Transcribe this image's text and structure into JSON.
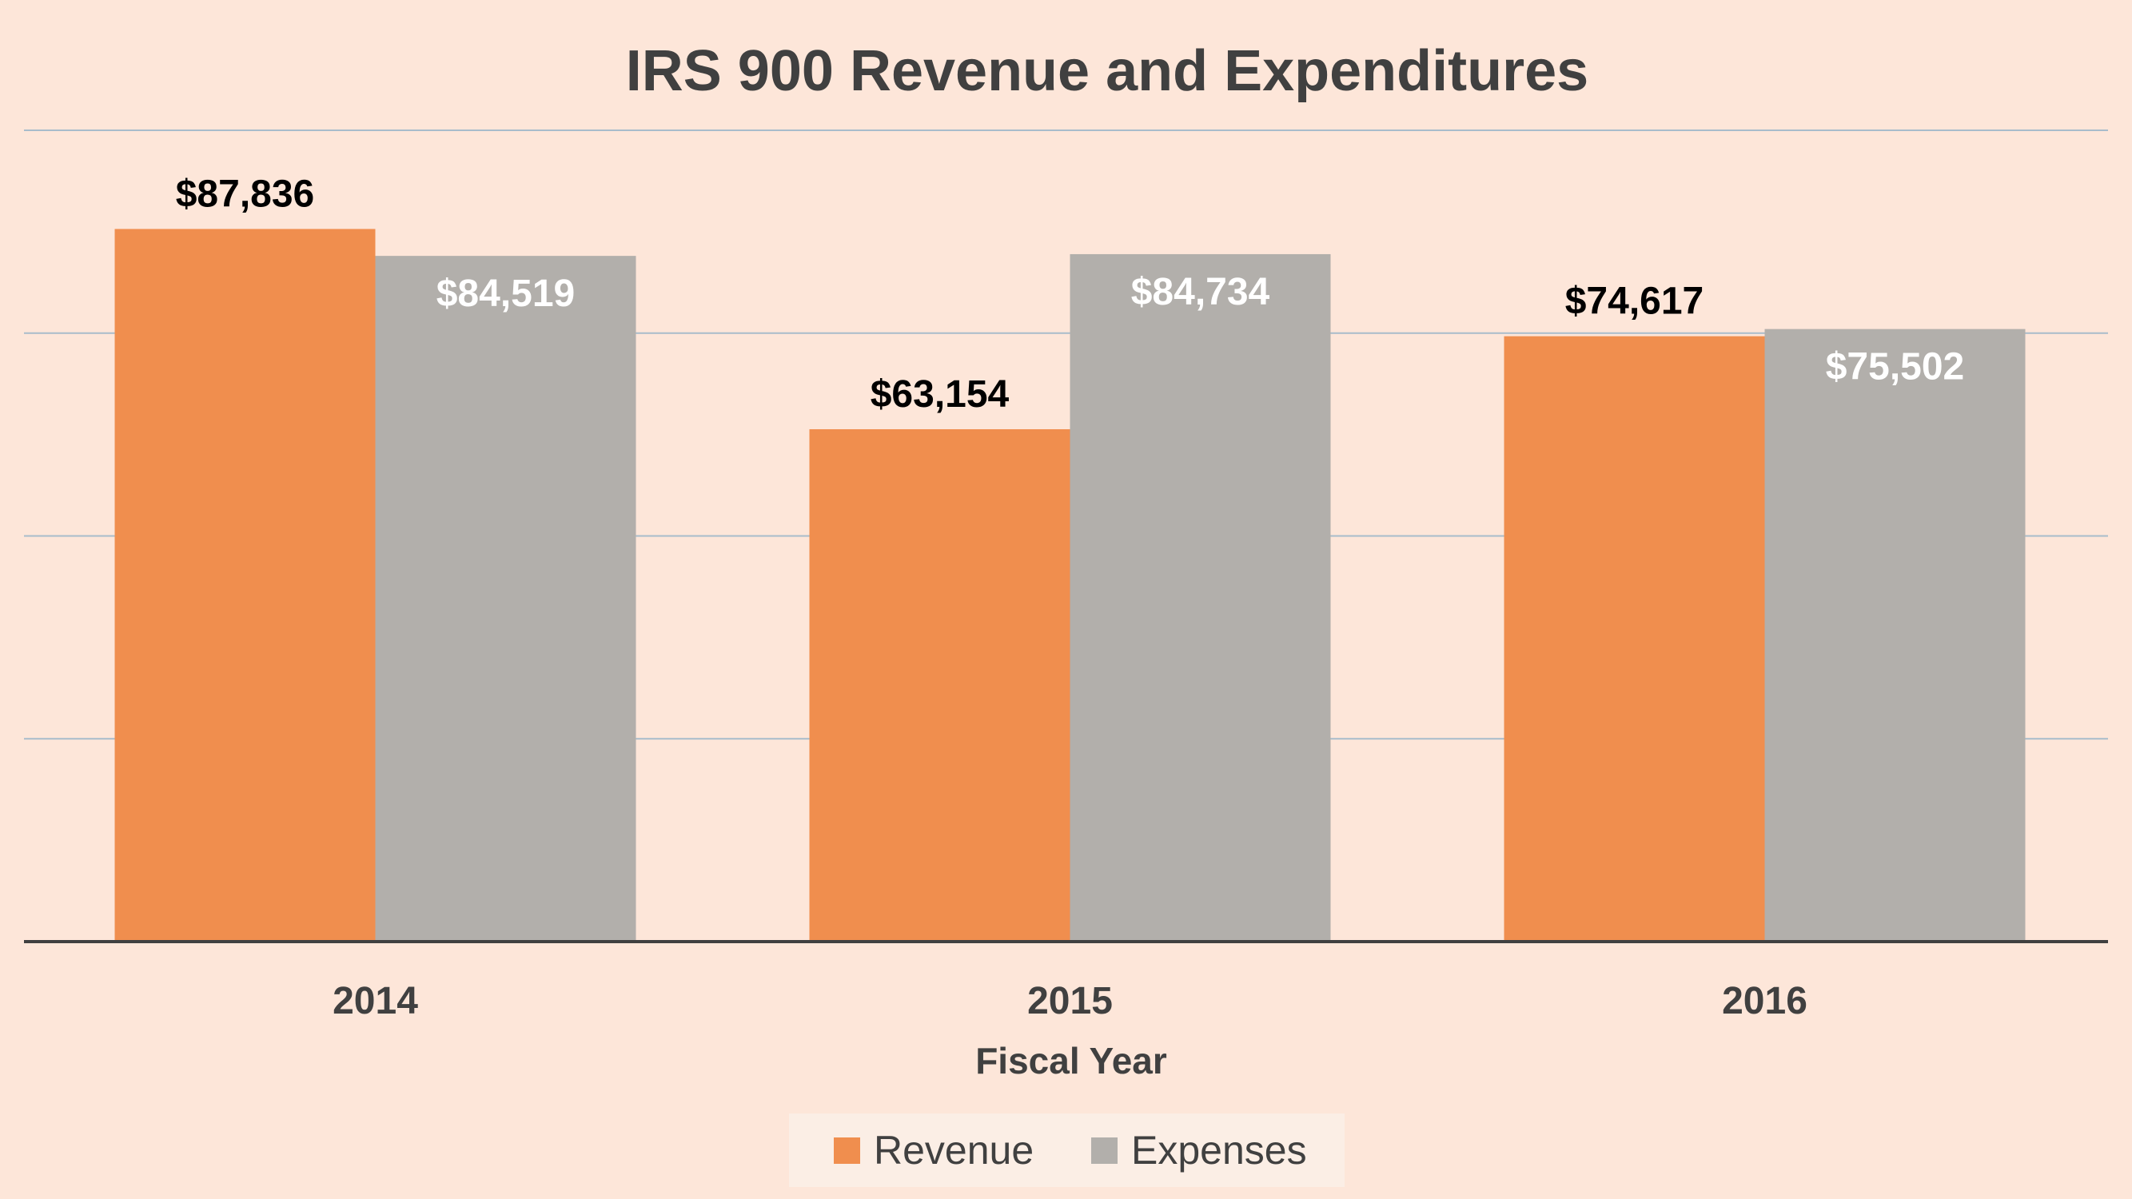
{
  "chart_data": {
    "type": "bar",
    "title": "IRS 900 Revenue and Expenditures",
    "xlabel": "Fiscal Year",
    "ylabel": "",
    "categories": [
      "2014",
      "2015",
      "2016"
    ],
    "ylim": [
      0,
      100000
    ],
    "grid": true,
    "legend_position": "bottom",
    "series": [
      {
        "name": "Revenue",
        "color": "#f08e4e",
        "label_color": "#000000",
        "values": [
          87836,
          63154,
          74617
        ],
        "labels": [
          "$87,836",
          "$63,154",
          "$74,617"
        ]
      },
      {
        "name": "Expenses",
        "color": "#b2afab",
        "label_color": "#ffffff",
        "values": [
          84519,
          84734,
          75502
        ],
        "labels": [
          "$84,519",
          "$84,734",
          "$75,502"
        ]
      }
    ]
  },
  "colors": {
    "background": "#fde6d9",
    "gridline": "#a8bccb",
    "axis": "#404040",
    "legend_background": "#fbeee5"
  }
}
